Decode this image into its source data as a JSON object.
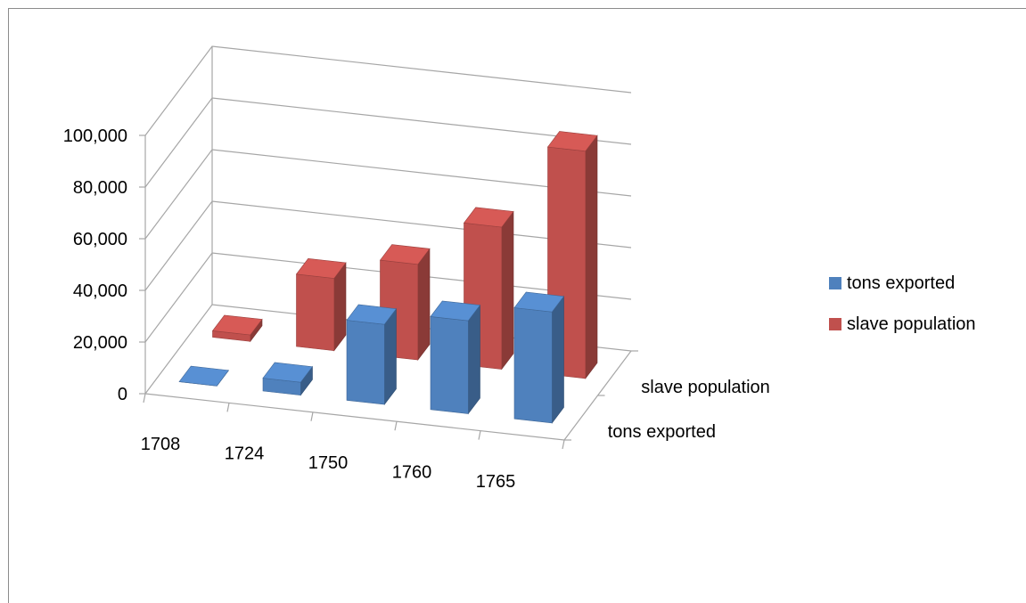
{
  "chart_data": {
    "type": "bar",
    "subtype": "3d-column",
    "title": "",
    "xlabel": "",
    "ylabel": "",
    "categories": [
      "1708",
      "1724",
      "1750",
      "1760",
      "1765"
    ],
    "series": [
      {
        "name": "tons exported",
        "color": "#4f81bd",
        "values": [
          0,
          5000,
          31000,
          36000,
          43000
        ]
      },
      {
        "name": "slave population",
        "color": "#c0504d",
        "values": [
          2500,
          28000,
          37000,
          55000,
          88000
        ]
      }
    ],
    "depth_labels": [
      "slave population",
      "tons exported"
    ],
    "ylim": [
      0,
      100000
    ],
    "yticks": [
      "0",
      "20,000",
      "40,000",
      "60,000",
      "80,000",
      "100,000"
    ],
    "grid": true,
    "legend_position": "right"
  }
}
